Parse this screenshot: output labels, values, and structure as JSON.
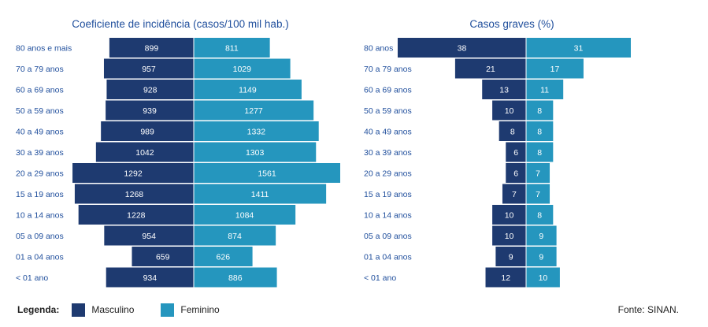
{
  "colors": {
    "male": "#1e3a70",
    "female": "#2596be",
    "title": "#1f4e9c",
    "label": "#1f4e9c"
  },
  "legend": {
    "title": "Legenda:",
    "male": "Masculino",
    "female": "Feminino"
  },
  "source": "Fonte: SINAN.",
  "chart_data": [
    {
      "type": "bar",
      "orientation": "population-pyramid",
      "title": "Coeficiente de incidência (casos/100 mil hab.)",
      "categories": [
        "80 anos e mais",
        "70 a 79 anos",
        "60 a 69 anos",
        "50 a 59 anos",
        "40 a 49 anos",
        "30 a 39 anos",
        "20 a 29 anos",
        "15 a 19 anos",
        "10 a 14 anos",
        "05 a 09 anos",
        "01 a 04 anos",
        "< 01 ano"
      ],
      "series": [
        {
          "name": "Masculino",
          "values": [
            899,
            957,
            928,
            939,
            989,
            1042,
            1292,
            1268,
            1228,
            954,
            659,
            934
          ]
        },
        {
          "name": "Feminino",
          "values": [
            811,
            1029,
            1149,
            1277,
            1332,
            1303,
            1561,
            1411,
            1084,
            874,
            626,
            886
          ]
        }
      ],
      "xlim": [
        0,
        1600
      ]
    },
    {
      "type": "bar",
      "orientation": "population-pyramid",
      "title": "Casos graves (%)",
      "categories": [
        "80 anos",
        "70 a 79 anos",
        "60 a 69 anos",
        "50 a 59 anos",
        "40 a 49 anos",
        "30 a 39 anos",
        "20 a 29 anos",
        "15 a 19 anos",
        "10 a 14 anos",
        "05 a 09 anos",
        "01 a 04 anos",
        "< 01 ano"
      ],
      "series": [
        {
          "name": "Masculino",
          "values": [
            38,
            21,
            13,
            10,
            8,
            6,
            6,
            7,
            10,
            10,
            9,
            12
          ]
        },
        {
          "name": "Feminino",
          "values": [
            31,
            17,
            11,
            8,
            8,
            8,
            7,
            7,
            8,
            9,
            9,
            10
          ]
        }
      ],
      "xlim": [
        0,
        40
      ]
    }
  ]
}
